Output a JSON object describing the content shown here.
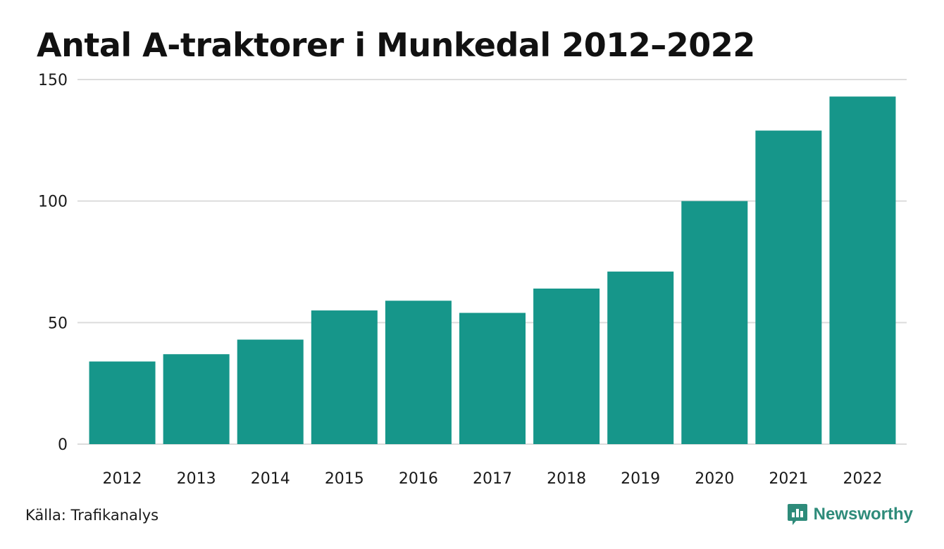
{
  "title": "Antal A-traktorer i Munkedal 2012–2022",
  "source": "Källa: Trafikanalys",
  "brand": {
    "name": "Newsworthy",
    "icon": "newsworthy-logo-icon",
    "color": "#2e8b7a"
  },
  "colors": {
    "bar": "#16968a",
    "grid": "#dcdcdc",
    "text": "#1a1a1a"
  },
  "chart_data": {
    "type": "bar",
    "title": "Antal A-traktorer i Munkedal 2012–2022",
    "xlabel": "",
    "ylabel": "",
    "categories": [
      "2012",
      "2013",
      "2014",
      "2015",
      "2016",
      "2017",
      "2018",
      "2019",
      "2020",
      "2021",
      "2022"
    ],
    "values": [
      34,
      37,
      43,
      55,
      59,
      54,
      64,
      71,
      100,
      129,
      143
    ],
    "ylim": [
      0,
      150
    ],
    "yticks": [
      0,
      50,
      100,
      150
    ],
    "grid": true,
    "legend": "none"
  }
}
